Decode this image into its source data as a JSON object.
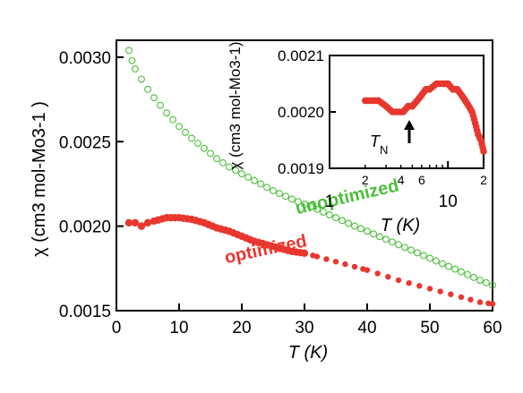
{
  "chart_data": [
    {
      "type": "scatter",
      "xlabel": "T (K)",
      "ylabel": "χ (cm3 mol-Mo3-1 )",
      "xlim": [
        0,
        60
      ],
      "ylim": [
        0.0015,
        0.0031
      ],
      "xticks": [
        "0",
        "10",
        "20",
        "30",
        "40",
        "50",
        "60"
      ],
      "yticks": [
        "0.0015",
        "0.0020",
        "0.0025",
        "0.0030"
      ],
      "grid": false,
      "series": [
        {
          "name": "unoptimized",
          "color": "#4cbf3a",
          "marker": "open-circle",
          "points": [
            [
              2,
              0.00304
            ],
            [
              2.5,
              0.00298
            ],
            [
              3,
              0.00293
            ],
            [
              4,
              0.00287
            ],
            [
              5,
              0.00281
            ],
            [
              6,
              0.00276
            ],
            [
              8,
              0.00267
            ],
            [
              10,
              0.00259
            ],
            [
              12,
              0.00252
            ],
            [
              14,
              0.00246
            ],
            [
              16,
              0.0024
            ],
            [
              18,
              0.00235
            ],
            [
              20,
              0.00231
            ],
            [
              22,
              0.00227
            ],
            [
              25,
              0.00221
            ],
            [
              28,
              0.00216
            ],
            [
              30,
              0.00213
            ],
            [
              32,
              0.0021
            ],
            [
              35,
              0.00205
            ],
            [
              38,
              0.002
            ],
            [
              40,
              0.00197
            ],
            [
              45,
              0.00189
            ],
            [
              50,
              0.00181
            ],
            [
              55,
              0.00173
            ],
            [
              58,
              0.00168
            ],
            [
              60,
              0.00165
            ]
          ]
        },
        {
          "name": "optimized",
          "color": "#e8372f",
          "marker": "filled-circle",
          "points": [
            [
              2,
              0.00202
            ],
            [
              3,
              0.00202
            ],
            [
              4,
              0.002
            ],
            [
              5,
              0.00202
            ],
            [
              6,
              0.00203
            ],
            [
              8,
              0.00205
            ],
            [
              10,
              0.00205
            ],
            [
              12,
              0.00204
            ],
            [
              14,
              0.00202
            ],
            [
              16,
              0.00199
            ],
            [
              18,
              0.00197
            ],
            [
              20,
              0.00194
            ],
            [
              22,
              0.00191
            ],
            [
              24,
              0.00189
            ],
            [
              26,
              0.00187
            ],
            [
              28,
              0.00185
            ],
            [
              30,
              0.00184
            ],
            [
              32,
              0.00182
            ],
            [
              35,
              0.00179
            ],
            [
              38,
              0.00176
            ],
            [
              40,
              0.00174
            ],
            [
              45,
              0.00168
            ],
            [
              50,
              0.00163
            ],
            [
              55,
              0.00158
            ],
            [
              58,
              0.00155
            ],
            [
              60,
              0.00154
            ]
          ]
        }
      ],
      "annotations": [
        {
          "text": "unoptimized",
          "color": "#4cbf3a",
          "at": [
            37,
            0.00214
          ],
          "rotate_deg": -13
        },
        {
          "text": "optimized",
          "color": "#e8372f",
          "at": [
            24,
            0.00183
          ],
          "rotate_deg": -12
        }
      ]
    },
    {
      "type": "scatter",
      "inset": true,
      "xlabel": "T (K)",
      "ylabel": "χ (cm3 mol-Mo3-1)",
      "xscale": "log",
      "xlim": [
        1,
        20
      ],
      "ylim": [
        0.0019,
        0.0021
      ],
      "xticks_major": [
        "1",
        "10"
      ],
      "xticks_minor": [
        "2",
        "4",
        "6",
        "2"
      ],
      "yticks": [
        "0.0019",
        "0.0020",
        "0.0021"
      ],
      "grid": false,
      "series": [
        {
          "name": "optimized",
          "color": "#e8372f",
          "marker": "filled-circle",
          "points": [
            [
              2,
              0.00202
            ],
            [
              2.3,
              0.00202
            ],
            [
              2.6,
              0.00202
            ],
            [
              3,
              0.00201
            ],
            [
              3.4,
              0.002
            ],
            [
              3.8,
              0.002
            ],
            [
              4.2,
              0.002
            ],
            [
              4.6,
              0.00201
            ],
            [
              5,
              0.00201
            ],
            [
              5.5,
              0.00202
            ],
            [
              6,
              0.00203
            ],
            [
              6.5,
              0.00204
            ],
            [
              7,
              0.00204
            ],
            [
              8,
              0.00205
            ],
            [
              9,
              0.00205
            ],
            [
              10,
              0.00205
            ],
            [
              11,
              0.00204
            ],
            [
              12,
              0.00204
            ],
            [
              13,
              0.00203
            ],
            [
              14,
              0.00202
            ],
            [
              15,
              0.00201
            ],
            [
              16,
              0.002
            ],
            [
              17,
              0.00198
            ],
            [
              18,
              0.00196
            ],
            [
              19,
              0.00195
            ],
            [
              20,
              0.00193
            ]
          ]
        }
      ],
      "annotations": [
        {
          "text": "T",
          "subscript": "N",
          "at": [
            4.2,
            0.001952
          ]
        }
      ]
    }
  ]
}
